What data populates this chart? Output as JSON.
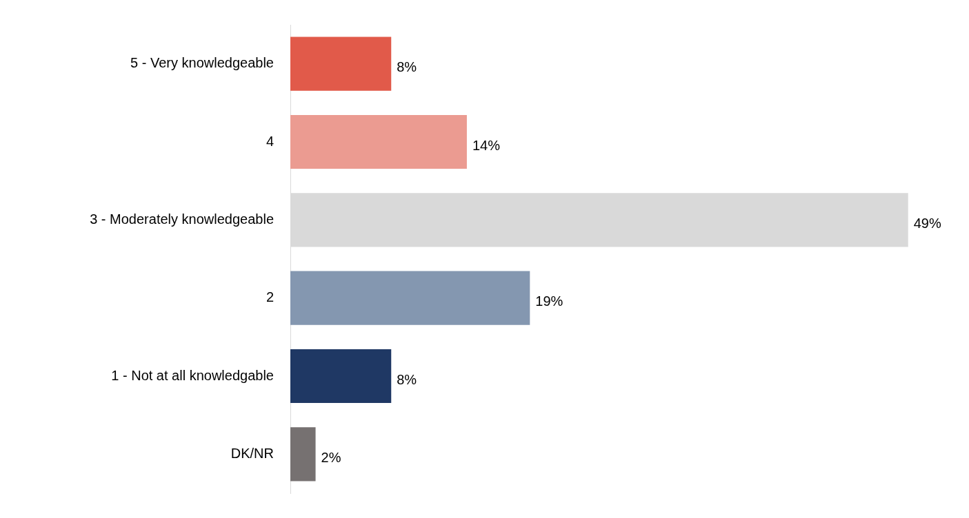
{
  "chart_data": {
    "type": "bar",
    "orientation": "horizontal",
    "categories": [
      "5 - Very knowledgeable",
      "4",
      "3 - Moderately knowledgeable",
      "2",
      "1 - Not at all knowledgable",
      "DK/NR"
    ],
    "values": [
      8,
      14,
      49,
      19,
      8,
      2
    ],
    "colors": [
      "#e15a4a",
      "#eb9b91",
      "#d9d9d9",
      "#8497b0",
      "#1f3864",
      "#767171"
    ],
    "value_labels": [
      "8%",
      "14%",
      "49%",
      "19%",
      "8%",
      "2%"
    ],
    "legend": false
  }
}
